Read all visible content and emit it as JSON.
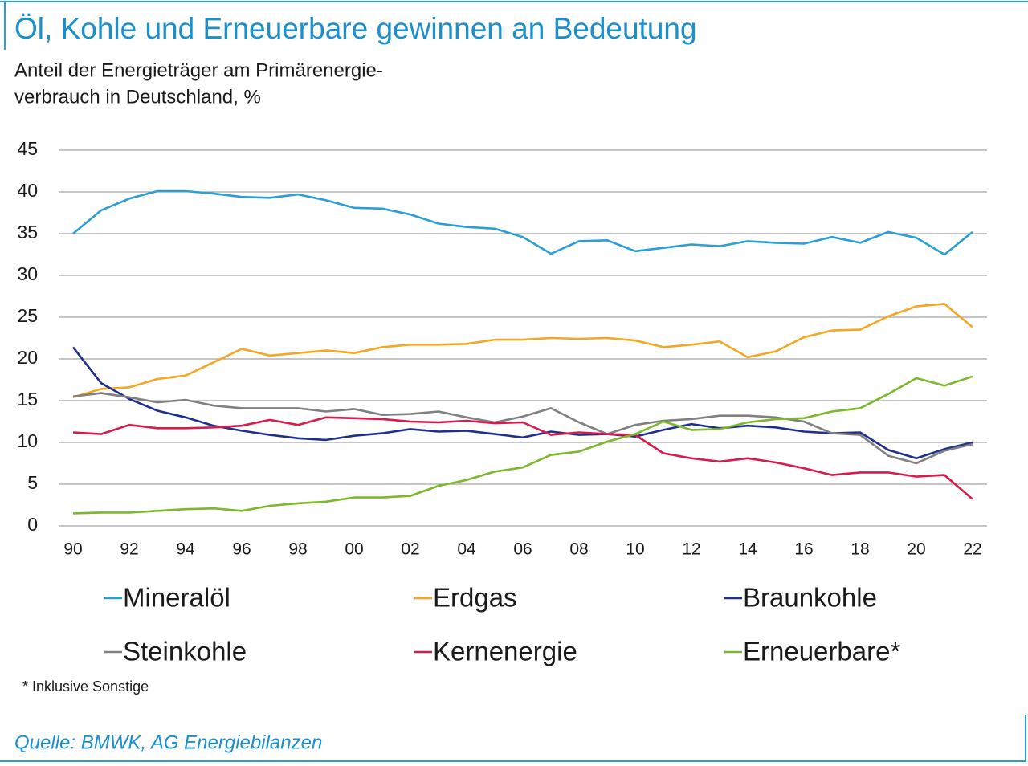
{
  "chart_data": {
    "type": "line",
    "title": "Öl, Kohle und Erneuerbare gewinnen an Bedeutung",
    "subtitle": [
      "Anteil der Energieträger am Primärenergie-",
      "verbrauch in Deutschland, %"
    ],
    "footnote": "* Inklusive Sonstige",
    "source": "Quelle: BMWK, AG Energiebilanzen",
    "categories": [
      "90",
      null,
      "92",
      null,
      "94",
      null,
      "96",
      null,
      "98",
      null,
      "00",
      null,
      "02",
      null,
      "04",
      null,
      "06",
      null,
      "08",
      null,
      "10",
      null,
      "12",
      null,
      "14",
      null,
      "16",
      null,
      "18",
      null,
      "20",
      null,
      "22"
    ],
    "ylim": [
      0,
      45
    ],
    "yticks": [
      0,
      5,
      10,
      15,
      20,
      25,
      30,
      35,
      40,
      45
    ],
    "grid": true,
    "series": [
      {
        "name": "Mineralöl",
        "color": "#2a9fd6",
        "values": [
          35,
          37.8,
          39.2,
          40.1,
          40.1,
          39.8,
          39.4,
          39.3,
          39.7,
          39.0,
          38.1,
          38.0,
          37.3,
          36.2,
          35.8,
          35.6,
          34.6,
          32.6,
          34.1,
          34.2,
          32.9,
          33.3,
          33.7,
          33.5,
          34.1,
          33.9,
          33.8,
          34.6,
          33.9,
          35.2,
          34.5,
          32.5,
          35.2
        ]
      },
      {
        "name": "Erdgas",
        "color": "#f5a623",
        "values": [
          15.4,
          16.4,
          16.6,
          17.6,
          18.0,
          19.6,
          21.2,
          20.4,
          20.7,
          21.0,
          20.7,
          21.4,
          21.7,
          21.7,
          21.8,
          22.3,
          22.3,
          22.5,
          22.4,
          22.5,
          22.2,
          21.4,
          21.7,
          22.1,
          20.2,
          20.9,
          22.6,
          23.4,
          23.5,
          25.1,
          26.3,
          26.6,
          23.8
        ]
      },
      {
        "name": "Braunkohle",
        "color": "#1f2f8f",
        "values": [
          21.4,
          17.1,
          15.2,
          13.8,
          13.0,
          12.0,
          11.4,
          10.9,
          10.5,
          10.3,
          10.8,
          11.1,
          11.6,
          11.3,
          11.4,
          11.0,
          10.6,
          11.3,
          10.9,
          11.0,
          10.7,
          11.5,
          12.2,
          11.7,
          12.0,
          11.8,
          11.3,
          11.1,
          11.2,
          9.1,
          8.1,
          9.2,
          10.0
        ]
      },
      {
        "name": "Steinkohle",
        "color": "#808080",
        "values": [
          15.5,
          15.9,
          15.4,
          14.8,
          15.1,
          14.4,
          14.1,
          14.1,
          14.1,
          13.7,
          14.0,
          13.3,
          13.4,
          13.7,
          13.0,
          12.4,
          13.1,
          14.1,
          12.4,
          11.0,
          12.1,
          12.6,
          12.8,
          13.2,
          13.2,
          13.0,
          12.5,
          11.1,
          10.9,
          8.4,
          7.5,
          9.0,
          9.8
        ]
      },
      {
        "name": "Kernenergie",
        "color": "#d81b4a",
        "values": [
          11.2,
          11.0,
          12.1,
          11.7,
          11.7,
          11.8,
          12.0,
          12.7,
          12.1,
          13.0,
          12.9,
          12.8,
          12.5,
          12.4,
          12.6,
          12.3,
          12.4,
          10.9,
          11.2,
          11.0,
          10.9,
          8.7,
          8.1,
          7.7,
          8.1,
          7.6,
          6.9,
          6.1,
          6.4,
          6.4,
          5.9,
          6.1,
          3.2
        ]
      },
      {
        "name": "Erneuerbare*",
        "color": "#7cb92a",
        "values": [
          1.5,
          1.6,
          1.6,
          1.8,
          2.0,
          2.1,
          1.8,
          2.4,
          2.7,
          2.9,
          3.4,
          3.4,
          3.6,
          4.8,
          5.5,
          6.5,
          7.0,
          8.5,
          8.9,
          10.1,
          11.0,
          12.5,
          11.5,
          11.6,
          12.4,
          12.8,
          12.9,
          13.7,
          14.1,
          15.8,
          17.7,
          16.8,
          17.9
        ]
      }
    ]
  }
}
